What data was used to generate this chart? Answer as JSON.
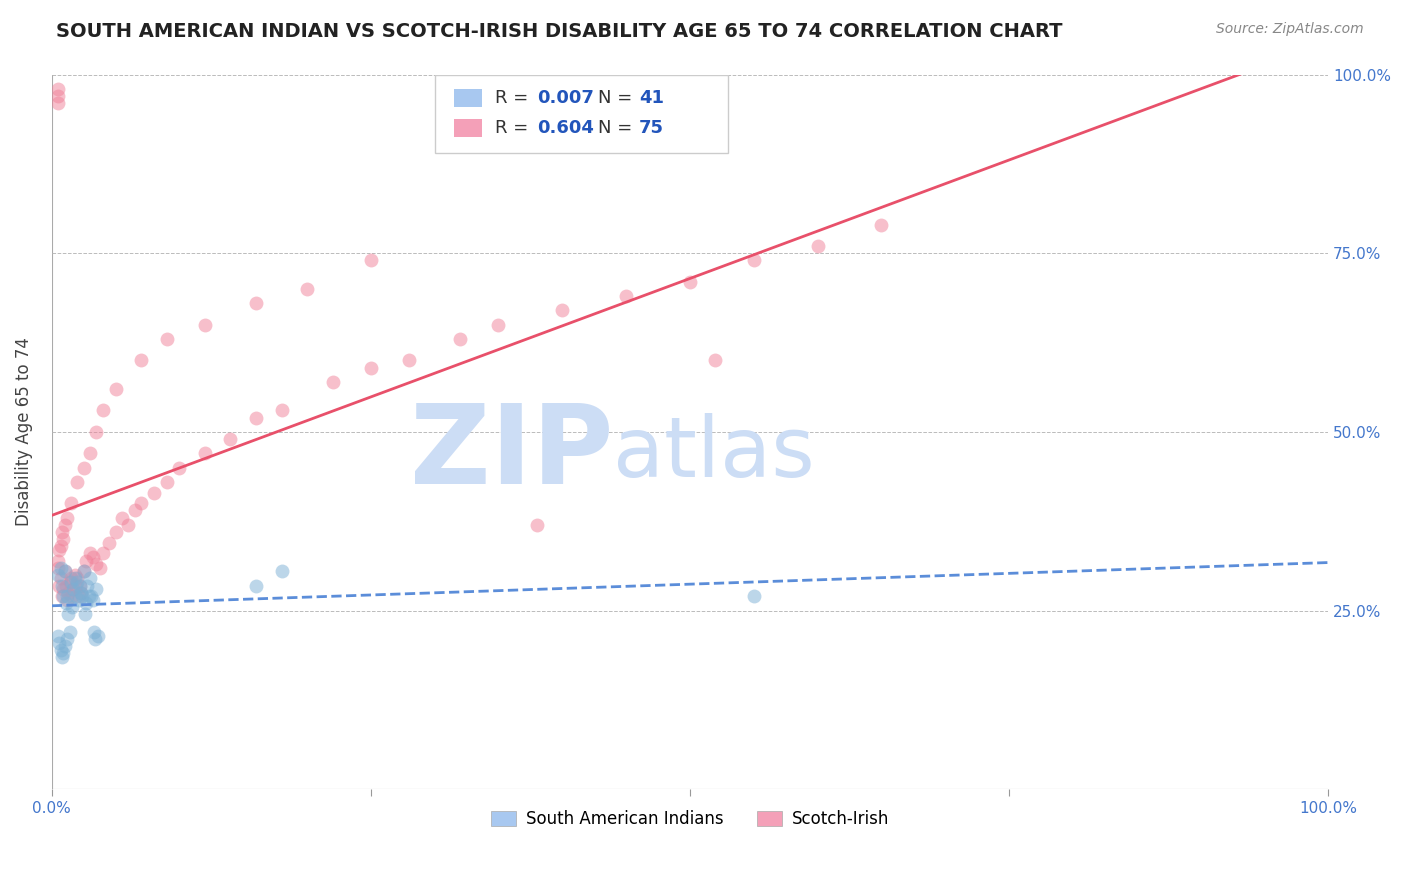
{
  "title": "SOUTH AMERICAN INDIAN VS SCOTCH-IRISH DISABILITY AGE 65 TO 74 CORRELATION CHART",
  "source": "Source: ZipAtlas.com",
  "ylabel": "Disability Age 65 to 74",
  "xlim": [
    0,
    1
  ],
  "ylim": [
    0,
    1
  ],
  "xticks": [
    0.0,
    0.25,
    0.5,
    0.75,
    1.0
  ],
  "xticklabels": [
    "0.0%",
    "",
    "",
    "",
    "100.0%"
  ],
  "yticks": [
    0.0,
    0.25,
    0.5,
    0.75,
    1.0
  ],
  "yticklabels": [
    "",
    "25.0%",
    "50.0%",
    "75.0%",
    "100.0%"
  ],
  "legend1_color": "#a8c8f0",
  "legend2_color": "#f4a0b8",
  "series1_color": "#7bafd4",
  "series2_color": "#f08098",
  "line1_color": "#5b8dd9",
  "line2_color": "#e8506a",
  "watermark_zip": "ZIP",
  "watermark_atlas": "atlas",
  "watermark_color": "#ccddf5",
  "grid_color": "#bbbbbb",
  "background_color": "#ffffff",
  "series1_x": [
    0.005,
    0.007,
    0.008,
    0.009,
    0.01,
    0.011,
    0.012,
    0.013,
    0.015,
    0.016,
    0.017,
    0.018,
    0.019,
    0.02,
    0.021,
    0.022,
    0.023,
    0.024,
    0.025,
    0.026,
    0.027,
    0.028,
    0.029,
    0.03,
    0.031,
    0.032,
    0.033,
    0.034,
    0.035,
    0.036,
    0.005,
    0.006,
    0.007,
    0.008,
    0.009,
    0.01,
    0.012,
    0.014,
    0.16,
    0.18,
    0.55
  ],
  "series1_y": [
    0.3,
    0.31,
    0.285,
    0.27,
    0.305,
    0.26,
    0.27,
    0.245,
    0.29,
    0.255,
    0.28,
    0.295,
    0.27,
    0.29,
    0.265,
    0.285,
    0.275,
    0.27,
    0.305,
    0.245,
    0.26,
    0.285,
    0.27,
    0.295,
    0.27,
    0.265,
    0.22,
    0.21,
    0.28,
    0.215,
    0.215,
    0.205,
    0.195,
    0.185,
    0.19,
    0.2,
    0.21,
    0.22,
    0.285,
    0.305,
    0.27
  ],
  "series2_x": [
    0.005,
    0.006,
    0.007,
    0.008,
    0.009,
    0.01,
    0.011,
    0.012,
    0.013,
    0.014,
    0.015,
    0.016,
    0.017,
    0.018,
    0.019,
    0.02,
    0.021,
    0.022,
    0.023,
    0.025,
    0.027,
    0.03,
    0.032,
    0.035,
    0.038,
    0.04,
    0.045,
    0.05,
    0.055,
    0.06,
    0.065,
    0.07,
    0.08,
    0.09,
    0.1,
    0.12,
    0.14,
    0.16,
    0.18,
    0.22,
    0.25,
    0.28,
    0.32,
    0.35,
    0.4,
    0.45,
    0.5,
    0.55,
    0.6,
    0.65,
    0.005,
    0.006,
    0.007,
    0.008,
    0.009,
    0.01,
    0.012,
    0.015,
    0.02,
    0.025,
    0.03,
    0.035,
    0.04,
    0.05,
    0.07,
    0.09,
    0.12,
    0.16,
    0.2,
    0.25,
    0.005,
    0.005,
    0.005,
    0.38,
    0.52
  ],
  "series2_y": [
    0.31,
    0.285,
    0.295,
    0.27,
    0.28,
    0.305,
    0.285,
    0.265,
    0.275,
    0.29,
    0.295,
    0.27,
    0.28,
    0.3,
    0.285,
    0.295,
    0.27,
    0.285,
    0.275,
    0.305,
    0.32,
    0.33,
    0.325,
    0.315,
    0.31,
    0.33,
    0.345,
    0.36,
    0.38,
    0.37,
    0.39,
    0.4,
    0.415,
    0.43,
    0.45,
    0.47,
    0.49,
    0.52,
    0.53,
    0.57,
    0.59,
    0.6,
    0.63,
    0.65,
    0.67,
    0.69,
    0.71,
    0.74,
    0.76,
    0.79,
    0.32,
    0.335,
    0.34,
    0.36,
    0.35,
    0.37,
    0.38,
    0.4,
    0.43,
    0.45,
    0.47,
    0.5,
    0.53,
    0.56,
    0.6,
    0.63,
    0.65,
    0.68,
    0.7,
    0.74,
    0.96,
    0.97,
    0.98,
    0.37,
    0.6
  ]
}
